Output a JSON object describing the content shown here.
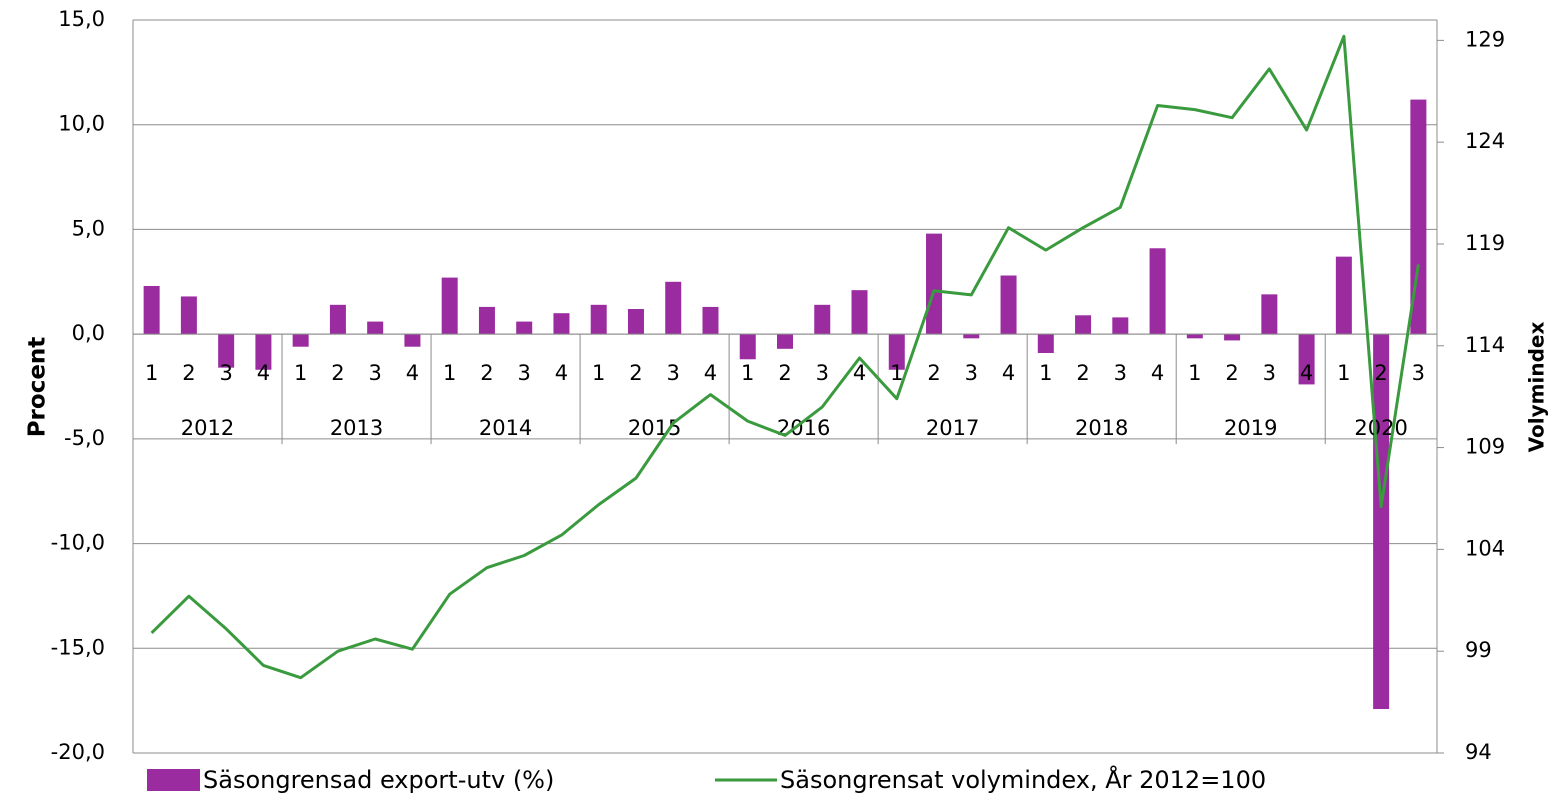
{
  "chart_data": {
    "type": "bar",
    "categories": [
      "1",
      "2",
      "3",
      "4",
      "1",
      "2",
      "3",
      "4",
      "1",
      "2",
      "3",
      "4",
      "1",
      "2",
      "3",
      "4",
      "1",
      "2",
      "3",
      "4",
      "1",
      "2",
      "3",
      "4",
      "1",
      "2",
      "3",
      "4",
      "1",
      "2",
      "3",
      "4",
      "1",
      "2",
      "3"
    ],
    "groups": [
      {
        "label": "2012",
        "span": 4
      },
      {
        "label": "2013",
        "span": 4
      },
      {
        "label": "2014",
        "span": 4
      },
      {
        "label": "2015",
        "span": 4
      },
      {
        "label": "2016",
        "span": 4
      },
      {
        "label": "2017",
        "span": 4
      },
      {
        "label": "2018",
        "span": 4
      },
      {
        "label": "2019",
        "span": 4
      },
      {
        "label": "2020",
        "span": 3
      }
    ],
    "series": [
      {
        "name": "Säsongrensad export-utv (%)",
        "type": "bar",
        "color": "#9a2ca0",
        "values": [
          2.3,
          1.8,
          -1.6,
          -1.7,
          -0.6,
          1.4,
          0.6,
          -0.6,
          2.7,
          1.3,
          0.6,
          1.0,
          1.4,
          1.2,
          2.5,
          1.3,
          -1.2,
          -0.7,
          1.4,
          2.1,
          -1.7,
          4.8,
          -0.2,
          2.8,
          -0.9,
          0.9,
          0.8,
          4.1,
          -0.2,
          -0.3,
          1.9,
          -2.4,
          3.7,
          -17.9,
          11.2
        ]
      },
      {
        "name": "Säsongrensat volymindex, År 2012=100",
        "type": "line",
        "axis": "y2",
        "color": "#3a9a3e",
        "values": [
          99.9,
          101.7,
          100.1,
          98.3,
          97.7,
          99.0,
          99.6,
          99.1,
          101.8,
          103.1,
          103.7,
          104.7,
          106.2,
          107.5,
          110.2,
          111.6,
          110.3,
          109.6,
          111.0,
          113.4,
          111.4,
          116.7,
          116.5,
          119.8,
          118.7,
          119.8,
          120.8,
          125.8,
          125.6,
          125.2,
          127.6,
          124.6,
          129.2,
          106.1,
          118.0
        ]
      }
    ],
    "ylabel": "Procent",
    "y2label": "Volymindex",
    "ylim": [
      -20,
      15
    ],
    "yticks": [
      {
        "value": -20,
        "label": "-20,0"
      },
      {
        "value": -15,
        "label": "-15,0"
      },
      {
        "value": -10,
        "label": "-10,0"
      },
      {
        "value": -5,
        "label": "-5,0"
      },
      {
        "value": 0,
        "label": "0,0"
      },
      {
        "value": 5,
        "label": "5,0"
      },
      {
        "value": 10,
        "label": "10,0"
      },
      {
        "value": 15,
        "label": "15,0"
      }
    ],
    "y2lim": [
      94,
      130
    ],
    "y2ticks": [
      94,
      99,
      104,
      109,
      114,
      119,
      124,
      129
    ],
    "grid": true
  }
}
